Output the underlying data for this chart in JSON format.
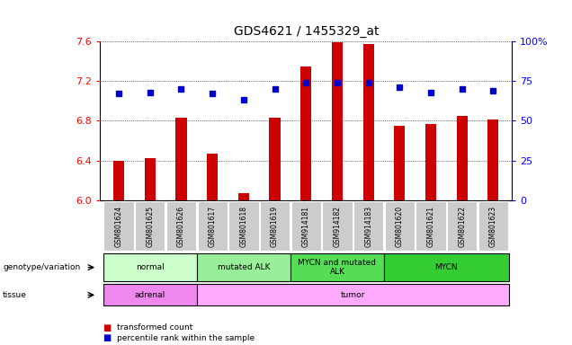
{
  "title": "GDS4621 / 1455329_at",
  "samples": [
    "GSM801624",
    "GSM801625",
    "GSM801626",
    "GSM801617",
    "GSM801618",
    "GSM801619",
    "GSM914181",
    "GSM914182",
    "GSM914183",
    "GSM801620",
    "GSM801621",
    "GSM801622",
    "GSM801623"
  ],
  "bar_values": [
    6.4,
    6.42,
    6.83,
    6.47,
    6.07,
    6.83,
    7.35,
    7.59,
    7.57,
    6.75,
    6.77,
    6.85,
    6.81
  ],
  "dot_values": [
    67,
    68,
    70,
    67,
    63,
    70,
    74,
    74,
    74,
    71,
    68,
    70,
    69
  ],
  "y_min": 6.0,
  "y_max": 7.6,
  "y_ticks": [
    6.0,
    6.4,
    6.8,
    7.2,
    7.6
  ],
  "y2_ticks": [
    0,
    25,
    50,
    75,
    100
  ],
  "bar_color": "#cc0000",
  "dot_color": "#0000cc",
  "genotype_groups": [
    {
      "label": "normal",
      "start": 0,
      "end": 3,
      "color": "#ccffcc"
    },
    {
      "label": "mutated ALK",
      "start": 3,
      "end": 6,
      "color": "#99ee99"
    },
    {
      "label": "MYCN and mutated\nALK",
      "start": 6,
      "end": 9,
      "color": "#55dd55"
    },
    {
      "label": "MYCN",
      "start": 9,
      "end": 13,
      "color": "#33cc33"
    }
  ],
  "tissue_groups": [
    {
      "label": "adrenal",
      "start": 0,
      "end": 3,
      "color": "#ee88ee"
    },
    {
      "label": "tumor",
      "start": 3,
      "end": 13,
      "color": "#ffaaff"
    }
  ],
  "left_label_genotype": "genotype/variation",
  "left_label_tissue": "tissue",
  "legend_bar": "transformed count",
  "legend_dot": "percentile rank within the sample",
  "tick_label_bg": "#cccccc"
}
